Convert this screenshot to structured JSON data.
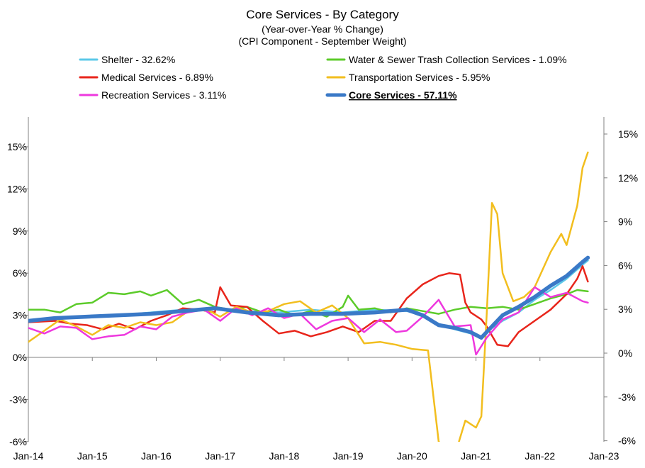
{
  "chart_data": {
    "type": "line",
    "title": "Core Services - By Category",
    "subtitle_1": "(Year-over-Year % Change)",
    "subtitle_2": "(CPI Component - September Weight)",
    "x_range": [
      "2014-01",
      "2023-01"
    ],
    "x_tick_labels": [
      "Jan-14",
      "Jan-15",
      "Jan-16",
      "Jan-17",
      "Jan-18",
      "Jan-19",
      "Jan-20",
      "Jan-21",
      "Jan-22",
      "Jan-23"
    ],
    "left_axis": {
      "min": -6,
      "max": 17,
      "ticks": [
        -6,
        -3,
        0,
        3,
        6,
        9,
        12,
        15
      ],
      "tick_labels": [
        "-6%",
        "-3%",
        "0%",
        "3%",
        "6%",
        "9%",
        "12%",
        "15%"
      ]
    },
    "right_axis": {
      "min": -6,
      "max": 17,
      "ticks": [
        -6,
        -3,
        0,
        3,
        6,
        9,
        12,
        15
      ],
      "tick_labels": [
        "-6%",
        "-3%",
        "0%",
        "3%",
        "6%",
        "9%",
        "12%",
        "15%"
      ]
    },
    "grid": false,
    "legend_position": "top",
    "series": [
      {
        "name": "Shelter - 32.62%",
        "color": "#5BC8E8",
        "width": 2.5,
        "bold": false,
        "points": [
          [
            "2014-01",
            2.6
          ],
          [
            "2014-06",
            2.8
          ],
          [
            "2014-12",
            2.9
          ],
          [
            "2015-06",
            3.0
          ],
          [
            "2015-12",
            3.2
          ],
          [
            "2016-06",
            3.4
          ],
          [
            "2016-12",
            3.5
          ],
          [
            "2017-06",
            3.3
          ],
          [
            "2017-12",
            3.2
          ],
          [
            "2018-06",
            3.4
          ],
          [
            "2018-12",
            3.2
          ],
          [
            "2019-06",
            3.4
          ],
          [
            "2019-12",
            3.3
          ],
          [
            "2020-03",
            3.0
          ],
          [
            "2020-06",
            2.4
          ],
          [
            "2020-09",
            2.0
          ],
          [
            "2020-12",
            1.7
          ],
          [
            "2021-02",
            1.5
          ],
          [
            "2021-04",
            2.1
          ],
          [
            "2021-06",
            2.6
          ],
          [
            "2021-09",
            3.2
          ],
          [
            "2021-12",
            4.1
          ],
          [
            "2022-03",
            4.8
          ],
          [
            "2022-06",
            5.6
          ],
          [
            "2022-09",
            6.6
          ],
          [
            "2022-10",
            6.9
          ]
        ]
      },
      {
        "name": "Water & Sewer Trash Collection Services - 1.09%",
        "color": "#5CCB2A",
        "width": 2.5,
        "bold": false,
        "points": [
          [
            "2014-01",
            3.4
          ],
          [
            "2014-04",
            3.4
          ],
          [
            "2014-07",
            3.2
          ],
          [
            "2014-10",
            3.8
          ],
          [
            "2015-01",
            3.9
          ],
          [
            "2015-04",
            4.6
          ],
          [
            "2015-07",
            4.5
          ],
          [
            "2015-10",
            4.7
          ],
          [
            "2015-12",
            4.4
          ],
          [
            "2016-03",
            4.8
          ],
          [
            "2016-06",
            3.8
          ],
          [
            "2016-09",
            4.1
          ],
          [
            "2016-12",
            3.6
          ],
          [
            "2017-03",
            3.4
          ],
          [
            "2017-06",
            3.6
          ],
          [
            "2017-09",
            3.2
          ],
          [
            "2017-12",
            3.4
          ],
          [
            "2018-03",
            3.0
          ],
          [
            "2018-06",
            3.3
          ],
          [
            "2018-09",
            2.9
          ],
          [
            "2018-12",
            3.6
          ],
          [
            "2019-01",
            4.4
          ],
          [
            "2019-03",
            3.4
          ],
          [
            "2019-06",
            3.5
          ],
          [
            "2019-09",
            3.2
          ],
          [
            "2019-12",
            3.5
          ],
          [
            "2020-03",
            3.3
          ],
          [
            "2020-06",
            3.1
          ],
          [
            "2020-09",
            3.4
          ],
          [
            "2020-12",
            3.6
          ],
          [
            "2021-03",
            3.5
          ],
          [
            "2021-06",
            3.6
          ],
          [
            "2021-09",
            3.4
          ],
          [
            "2021-12",
            3.8
          ],
          [
            "2022-03",
            4.2
          ],
          [
            "2022-06",
            4.5
          ],
          [
            "2022-08",
            4.8
          ],
          [
            "2022-10",
            4.7
          ]
        ]
      },
      {
        "name": "Medical Services - 6.89%",
        "color": "#E8251B",
        "width": 2.5,
        "bold": false,
        "points": [
          [
            "2014-01",
            2.5
          ],
          [
            "2014-06",
            2.6
          ],
          [
            "2014-09",
            2.4
          ],
          [
            "2014-12",
            2.3
          ],
          [
            "2015-03",
            2.0
          ],
          [
            "2015-06",
            2.4
          ],
          [
            "2015-09",
            2.0
          ],
          [
            "2015-12",
            2.6
          ],
          [
            "2016-03",
            3.0
          ],
          [
            "2016-06",
            3.5
          ],
          [
            "2016-09",
            3.4
          ],
          [
            "2016-12",
            3.2
          ],
          [
            "2017-01",
            5.0
          ],
          [
            "2017-03",
            3.7
          ],
          [
            "2017-06",
            3.6
          ],
          [
            "2017-09",
            2.6
          ],
          [
            "2017-12",
            1.7
          ],
          [
            "2018-03",
            1.9
          ],
          [
            "2018-06",
            1.5
          ],
          [
            "2018-09",
            1.8
          ],
          [
            "2018-12",
            2.2
          ],
          [
            "2019-03",
            1.8
          ],
          [
            "2019-06",
            2.6
          ],
          [
            "2019-09",
            2.6
          ],
          [
            "2019-12",
            4.2
          ],
          [
            "2020-03",
            5.2
          ],
          [
            "2020-06",
            5.8
          ],
          [
            "2020-08",
            6.0
          ],
          [
            "2020-10",
            5.9
          ],
          [
            "2020-11",
            3.9
          ],
          [
            "2020-12",
            3.2
          ],
          [
            "2021-02",
            2.7
          ],
          [
            "2021-03",
            2.2
          ],
          [
            "2021-05",
            0.9
          ],
          [
            "2021-07",
            0.8
          ],
          [
            "2021-09",
            1.8
          ],
          [
            "2021-12",
            2.6
          ],
          [
            "2022-03",
            3.4
          ],
          [
            "2022-06",
            4.5
          ],
          [
            "2022-08",
            5.6
          ],
          [
            "2022-09",
            6.5
          ],
          [
            "2022-10",
            5.4
          ]
        ]
      },
      {
        "name": "Transportation Services - 5.95%",
        "color": "#F2BE1E",
        "width": 2.5,
        "bold": false,
        "points": [
          [
            "2014-01",
            1.1
          ],
          [
            "2014-04",
            1.9
          ],
          [
            "2014-07",
            2.7
          ],
          [
            "2014-10",
            2.2
          ],
          [
            "2015-01",
            1.6
          ],
          [
            "2015-04",
            2.3
          ],
          [
            "2015-07",
            2.1
          ],
          [
            "2015-10",
            2.5
          ],
          [
            "2016-01",
            2.3
          ],
          [
            "2016-04",
            2.5
          ],
          [
            "2016-07",
            3.3
          ],
          [
            "2016-10",
            3.5
          ],
          [
            "2017-01",
            2.9
          ],
          [
            "2017-04",
            3.6
          ],
          [
            "2017-07",
            3.2
          ],
          [
            "2017-10",
            3.3
          ],
          [
            "2018-01",
            3.8
          ],
          [
            "2018-04",
            4.0
          ],
          [
            "2018-07",
            3.2
          ],
          [
            "2018-10",
            3.7
          ],
          [
            "2019-01",
            2.8
          ],
          [
            "2019-04",
            1.0
          ],
          [
            "2019-07",
            1.1
          ],
          [
            "2019-10",
            0.9
          ],
          [
            "2020-01",
            0.6
          ],
          [
            "2020-04",
            0.5
          ],
          [
            "2020-06",
            -6.0
          ],
          [
            "2020-09",
            -7.0
          ],
          [
            "2020-11",
            -4.5
          ],
          [
            "2021-01",
            -5.0
          ],
          [
            "2021-02",
            -4.2
          ],
          [
            "2021-03",
            3.0
          ],
          [
            "2021-04",
            11.0
          ],
          [
            "2021-05",
            10.2
          ],
          [
            "2021-06",
            6.0
          ],
          [
            "2021-08",
            4.0
          ],
          [
            "2021-10",
            4.3
          ],
          [
            "2021-12",
            5.0
          ],
          [
            "2022-03",
            7.5
          ],
          [
            "2022-05",
            8.8
          ],
          [
            "2022-06",
            8.0
          ],
          [
            "2022-08",
            10.8
          ],
          [
            "2022-09",
            13.5
          ],
          [
            "2022-10",
            14.6
          ]
        ]
      },
      {
        "name": "Recreation Services - 3.11%",
        "color": "#EE38DE",
        "width": 2.5,
        "bold": false,
        "points": [
          [
            "2014-01",
            2.1
          ],
          [
            "2014-04",
            1.7
          ],
          [
            "2014-07",
            2.2
          ],
          [
            "2014-10",
            2.1
          ],
          [
            "2015-01",
            1.3
          ],
          [
            "2015-04",
            1.5
          ],
          [
            "2015-07",
            1.6
          ],
          [
            "2015-10",
            2.2
          ],
          [
            "2016-01",
            2.0
          ],
          [
            "2016-04",
            2.9
          ],
          [
            "2016-07",
            3.2
          ],
          [
            "2016-10",
            3.4
          ],
          [
            "2017-01",
            2.6
          ],
          [
            "2017-04",
            3.5
          ],
          [
            "2017-07",
            3.0
          ],
          [
            "2017-10",
            3.5
          ],
          [
            "2018-01",
            2.8
          ],
          [
            "2018-04",
            3.1
          ],
          [
            "2018-07",
            2.0
          ],
          [
            "2018-10",
            2.6
          ],
          [
            "2019-01",
            2.8
          ],
          [
            "2019-04",
            1.8
          ],
          [
            "2019-07",
            2.7
          ],
          [
            "2019-10",
            1.8
          ],
          [
            "2019-12",
            1.9
          ],
          [
            "2020-03",
            2.9
          ],
          [
            "2020-06",
            4.1
          ],
          [
            "2020-09",
            2.2
          ],
          [
            "2020-12",
            2.3
          ],
          [
            "2021-01",
            0.2
          ],
          [
            "2021-03",
            1.4
          ],
          [
            "2021-06",
            2.7
          ],
          [
            "2021-09",
            3.2
          ],
          [
            "2021-12",
            5.0
          ],
          [
            "2022-03",
            4.3
          ],
          [
            "2022-06",
            4.6
          ],
          [
            "2022-09",
            4.0
          ],
          [
            "2022-10",
            3.9
          ]
        ]
      },
      {
        "name": "Core Services - 57.11%",
        "color": "#3A79C7",
        "width": 5.5,
        "bold": true,
        "points": [
          [
            "2014-01",
            2.6
          ],
          [
            "2014-06",
            2.8
          ],
          [
            "2014-12",
            2.9
          ],
          [
            "2015-06",
            3.0
          ],
          [
            "2015-12",
            3.1
          ],
          [
            "2016-06",
            3.3
          ],
          [
            "2016-12",
            3.5
          ],
          [
            "2017-06",
            3.2
          ],
          [
            "2017-12",
            3.0
          ],
          [
            "2018-06",
            3.1
          ],
          [
            "2018-12",
            3.1
          ],
          [
            "2019-06",
            3.2
          ],
          [
            "2019-12",
            3.4
          ],
          [
            "2020-03",
            3.0
          ],
          [
            "2020-06",
            2.3
          ],
          [
            "2020-09",
            2.1
          ],
          [
            "2020-12",
            1.8
          ],
          [
            "2021-02",
            1.4
          ],
          [
            "2021-04",
            2.2
          ],
          [
            "2021-06",
            3.0
          ],
          [
            "2021-09",
            3.6
          ],
          [
            "2021-12",
            4.3
          ],
          [
            "2022-03",
            5.1
          ],
          [
            "2022-06",
            5.8
          ],
          [
            "2022-09",
            6.8
          ],
          [
            "2022-10",
            7.1
          ]
        ]
      }
    ]
  }
}
